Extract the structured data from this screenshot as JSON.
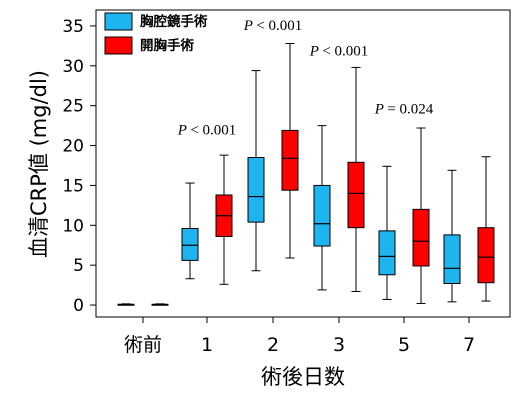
{
  "chart_data": {
    "type": "box",
    "xlabel": "術後日数",
    "ylabel": "血清CRP値 (mg/dl)",
    "ylim": [
      -1.5,
      37
    ],
    "yticks": [
      0,
      5,
      10,
      15,
      20,
      25,
      30,
      35
    ],
    "categories": [
      "術前",
      "1",
      "2",
      "3",
      "5",
      "7"
    ],
    "legend_position": "top-left",
    "colors": {
      "thoracoscopic": "#1EB4F0",
      "open": "#FF0000"
    },
    "series": [
      {
        "name": "胸腔鏡手術",
        "color_key": "thoracoscopic",
        "boxes": [
          {
            "min": 0,
            "q1": 0,
            "median": 0.05,
            "q3": 0.1,
            "max": 0.15
          },
          {
            "min": 3.3,
            "q1": 5.6,
            "median": 7.5,
            "q3": 9.6,
            "max": 15.3
          },
          {
            "min": 4.3,
            "q1": 10.4,
            "median": 13.6,
            "q3": 18.5,
            "max": 29.4
          },
          {
            "min": 1.9,
            "q1": 7.4,
            "median": 10.2,
            "q3": 15.0,
            "max": 22.5
          },
          {
            "min": 0.7,
            "q1": 3.8,
            "median": 6.1,
            "q3": 9.3,
            "max": 17.4
          },
          {
            "min": 0.4,
            "q1": 2.7,
            "median": 4.6,
            "q3": 8.8,
            "max": 16.9
          }
        ]
      },
      {
        "name": "開胸手術",
        "color_key": "open",
        "boxes": [
          {
            "min": 0,
            "q1": 0,
            "median": 0.05,
            "q3": 0.1,
            "max": 0.15
          },
          {
            "min": 2.6,
            "q1": 8.6,
            "median": 11.2,
            "q3": 13.8,
            "max": 18.8
          },
          {
            "min": 5.9,
            "q1": 14.4,
            "median": 18.4,
            "q3": 21.9,
            "max": 32.8
          },
          {
            "min": 1.7,
            "q1": 9.7,
            "median": 14.0,
            "q3": 17.9,
            "max": 29.8
          },
          {
            "min": 0.2,
            "q1": 4.9,
            "median": 8.0,
            "q3": 12.0,
            "max": 22.2
          },
          {
            "min": 0.5,
            "q1": 2.8,
            "median": 6.0,
            "q3": 9.7,
            "max": 18.6
          }
        ]
      }
    ],
    "annotations": [
      {
        "category_index": 1,
        "y": 21.4,
        "text": "< 0.001"
      },
      {
        "category_index": 2,
        "y": 34.5,
        "text": "< 0.001"
      },
      {
        "category_index": 3,
        "y": 31.3,
        "text": "< 0.001"
      },
      {
        "category_index": 4,
        "y": 24.0,
        "text": "= 0.024"
      }
    ],
    "annotation_prefix": "P"
  }
}
